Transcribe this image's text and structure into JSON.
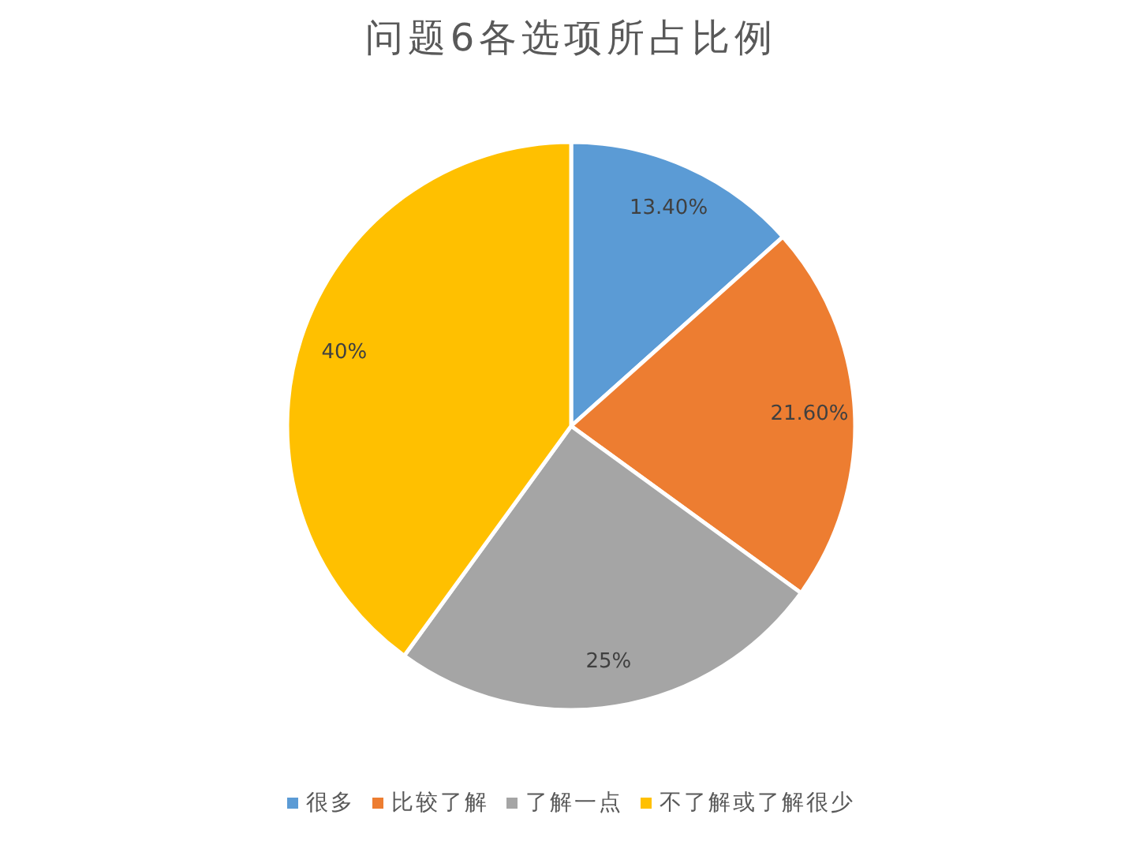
{
  "chart_data": {
    "type": "pie",
    "title": "问题6各选项所占比例",
    "categories": [
      "很多",
      "比较了解",
      "了解一点",
      "不了解或了解很少"
    ],
    "values": [
      13.4,
      21.6,
      25,
      40
    ],
    "colors": [
      "#5b9bd5",
      "#ed7d31",
      "#a5a5a5",
      "#ffc000"
    ],
    "value_labels": [
      "13.40%",
      "21.60%",
      "25%",
      "40%"
    ],
    "legend": "bottom"
  }
}
